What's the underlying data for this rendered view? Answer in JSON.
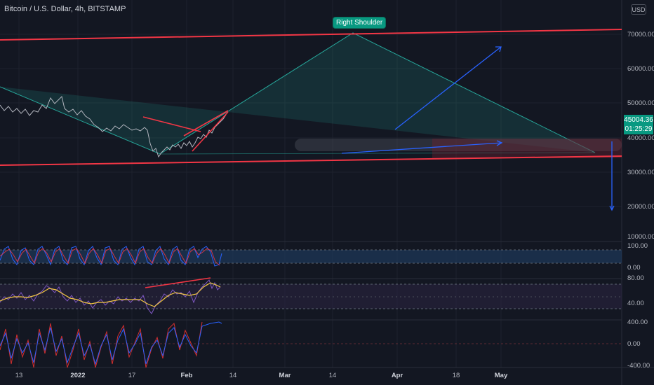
{
  "header": {
    "symbol_title": "Bitcoin / U.S. Dollar, 4h, BITSTAMP",
    "currency": "USD"
  },
  "annotation": {
    "right_shoulder": "Right Shoulder"
  },
  "price_tag": {
    "price": "45004.36",
    "countdown": "01:25:29",
    "color": "#089981"
  },
  "price_axis": [
    "70000.00",
    "60000.00",
    "50000.00",
    "40000.00",
    "30000.00",
    "20000.00",
    "10000.00"
  ],
  "stoch_axis": [
    "100.00",
    "0.00"
  ],
  "rsi_axis": [
    "80.00",
    "40.00"
  ],
  "osc_axis": [
    "400.00",
    "0.00",
    "-400.00"
  ],
  "time_axis": [
    "13",
    "2022",
    "17",
    "Feb",
    "14",
    "Mar",
    "14",
    "Apr",
    "18",
    "May"
  ],
  "colors": {
    "background": "#131722",
    "channel_line": "#f23645",
    "pattern_fill": "#1e3b36",
    "pattern_line": "#26a69a",
    "arrow": "#2962ff",
    "stoch_band": "#1e3a5f",
    "rsi_band": "#2a2340"
  }
}
